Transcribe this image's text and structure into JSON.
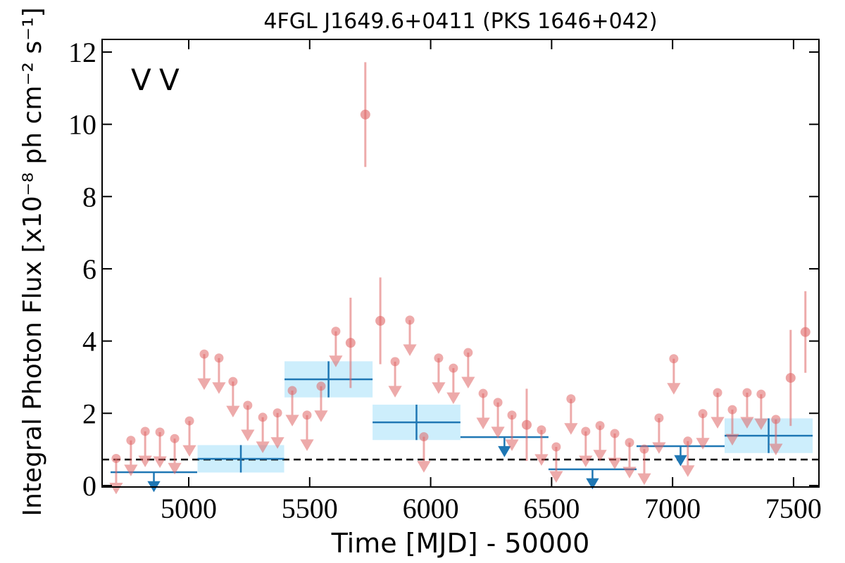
{
  "chart_data": {
    "type": "lightcurve",
    "title": "4FGL J1649.6+0411 (PKS 1646+042)",
    "x_label": "Time [MJD] - 50000",
    "y_label": "Integral Photon Flux [x10⁻⁸ ph cm⁻² s⁻¹]",
    "xlim": [
      4642,
      7605
    ],
    "ylim": [
      -0.04,
      12.35
    ],
    "xticks": [
      5000,
      5500,
      6000,
      6500,
      7000,
      7500
    ],
    "yticks": [
      0,
      2,
      4,
      6,
      8,
      10,
      12
    ],
    "hline": 0.72,
    "series": [
      {
        "name": "V",
        "color": "#1f77b4",
        "band_color": "#cdeefc",
        "x": [
          4856,
          5215.5,
          5578,
          5941.5,
          6305,
          6669,
          7033,
          7397
        ],
        "xerr": [
          179,
          179,
          182,
          181.5,
          182,
          182,
          182,
          182
        ],
        "values": [
          0.37,
          0.74,
          2.94,
          1.75,
          1.34,
          0.45,
          1.09,
          1.38
        ],
        "yerr": [
          null,
          0.38,
          0.5,
          0.49,
          null,
          null,
          null,
          0.48
        ]
      },
      {
        "name": "V",
        "color": "#e06666",
        "x": [
          4700,
          4761,
          4820,
          4881,
          4942,
          5003,
          5064,
          5125,
          5183,
          5244,
          5306,
          5367,
          5428,
          5489,
          5547,
          5608,
          5669,
          5730,
          5792,
          5853,
          5914,
          5972,
          6033,
          6094,
          6155,
          6217,
          6278,
          6336,
          6397,
          6458,
          6519,
          6580,
          6641,
          6700,
          6761,
          6822,
          6883,
          6944,
          7005,
          7063,
          7125,
          7186,
          7247,
          7308,
          7366,
          7427,
          7488,
          7549
        ],
        "values": [
          0.75,
          1.25,
          1.5,
          1.48,
          1.3,
          1.79,
          3.64,
          3.53,
          2.88,
          2.22,
          1.89,
          2.01,
          2.63,
          1.95,
          2.75,
          4.27,
          3.95,
          10.27,
          4.56,
          3.43,
          4.58,
          1.35,
          3.53,
          3.25,
          3.68,
          2.55,
          2.3,
          1.95,
          1.68,
          1.54,
          1.07,
          2.4,
          1.5,
          1.66,
          1.44,
          1.19,
          1.01,
          1.87,
          3.51,
          1.23,
          1.99,
          2.57,
          2.1,
          2.57,
          2.53,
          1.83,
          2.98,
          4.25
        ],
        "yerr": [
          null,
          null,
          null,
          null,
          null,
          null,
          null,
          null,
          null,
          null,
          null,
          null,
          null,
          null,
          null,
          null,
          1.25,
          1.45,
          1.2,
          null,
          null,
          null,
          null,
          null,
          null,
          null,
          null,
          null,
          1.0,
          null,
          null,
          null,
          null,
          null,
          null,
          null,
          null,
          null,
          null,
          null,
          null,
          null,
          null,
          null,
          null,
          null,
          1.33,
          1.13
        ]
      }
    ]
  }
}
